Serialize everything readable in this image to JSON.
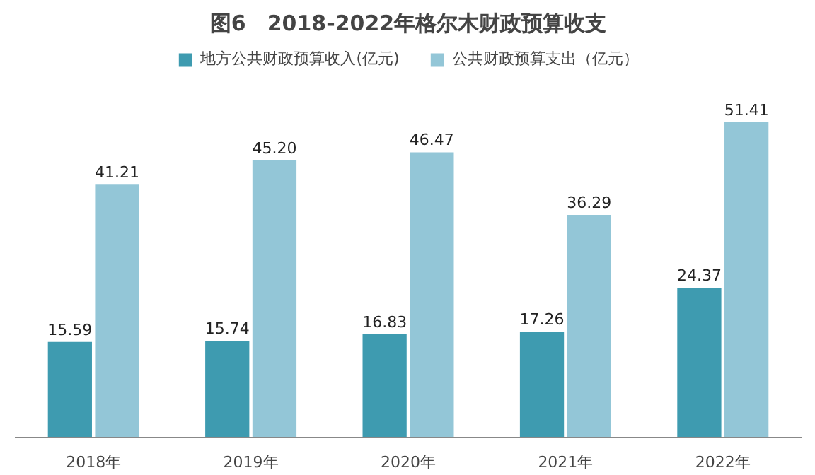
{
  "chart_data": {
    "type": "bar",
    "title": "图6　2018-2022年格尔木财政预算收支",
    "categories": [
      "2018年",
      "2019年",
      "2020年",
      "2021年",
      "2022年"
    ],
    "series": [
      {
        "name": "地方公共财政预算收入(亿元)",
        "color": "#3e9bb0",
        "values": [
          15.59,
          15.74,
          16.83,
          17.26,
          24.37
        ],
        "value_labels": [
          "15.59",
          "15.74",
          "16.83",
          "17.26",
          "24.37"
        ]
      },
      {
        "name": "公共财政预算支出（亿元）",
        "color": "#93c6d7",
        "values": [
          41.21,
          45.2,
          46.47,
          36.29,
          51.41
        ],
        "value_labels": [
          "41.21",
          "45.20",
          "46.47",
          "36.29",
          "51.41"
        ]
      }
    ],
    "legend": "top"
  }
}
